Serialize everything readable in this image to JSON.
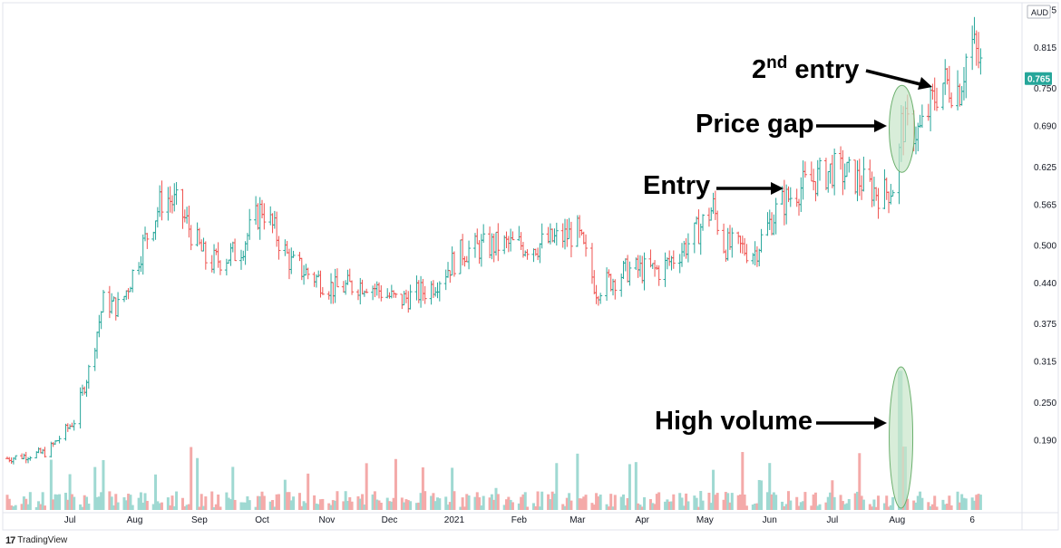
{
  "chart_data": {
    "type": "ohlc",
    "currency": "AUD",
    "last_price": "0.765",
    "y_ticks": [
      "0.875",
      "0.815",
      "0.750",
      "0.690",
      "0.625",
      "0.565",
      "0.500",
      "0.440",
      "0.375",
      "0.315",
      "0.250",
      "0.190"
    ],
    "ylim": [
      0.13,
      0.88
    ],
    "x_ticks": [
      "Jul",
      "Aug",
      "Sep",
      "Oct",
      "Nov",
      "Dec",
      "2021",
      "Feb",
      "Mar",
      "Apr",
      "May",
      "Jun",
      "Jul",
      "Aug",
      "6"
    ],
    "grid": false,
    "price_keypoints": [
      {
        "date": "2020-06-01",
        "close": 0.16
      },
      {
        "date": "2020-06-20",
        "close": 0.17
      },
      {
        "date": "2020-07-03",
        "close": 0.22
      },
      {
        "date": "2020-07-10",
        "close": 0.3
      },
      {
        "date": "2020-07-17",
        "close": 0.41
      },
      {
        "date": "2020-07-25",
        "close": 0.4
      },
      {
        "date": "2020-08-05",
        "close": 0.5
      },
      {
        "date": "2020-08-15",
        "close": 0.58
      },
      {
        "date": "2020-08-22",
        "close": 0.56
      },
      {
        "date": "2020-09-05",
        "close": 0.47
      },
      {
        "date": "2020-09-20",
        "close": 0.49
      },
      {
        "date": "2020-10-01",
        "close": 0.56
      },
      {
        "date": "2020-10-15",
        "close": 0.47
      },
      {
        "date": "2020-11-05",
        "close": 0.43
      },
      {
        "date": "2020-11-20",
        "close": 0.44
      },
      {
        "date": "2020-12-05",
        "close": 0.41
      },
      {
        "date": "2020-12-20",
        "close": 0.43
      },
      {
        "date": "2021-01-05",
        "close": 0.49
      },
      {
        "date": "2021-01-20",
        "close": 0.5
      },
      {
        "date": "2021-02-10",
        "close": 0.5
      },
      {
        "date": "2021-03-01",
        "close": 0.52
      },
      {
        "date": "2021-03-10",
        "close": 0.43
      },
      {
        "date": "2021-03-25",
        "close": 0.46
      },
      {
        "date": "2021-04-10",
        "close": 0.46
      },
      {
        "date": "2021-04-25",
        "close": 0.51
      },
      {
        "date": "2021-05-05",
        "close": 0.56
      },
      {
        "date": "2021-05-10",
        "close": 0.5
      },
      {
        "date": "2021-05-25",
        "close": 0.49
      },
      {
        "date": "2021-06-05",
        "close": 0.56
      },
      {
        "date": "2021-06-15",
        "close": 0.59
      },
      {
        "date": "2021-07-01",
        "close": 0.62
      },
      {
        "date": "2021-07-10",
        "close": 0.61
      },
      {
        "date": "2021-07-25",
        "close": 0.58
      },
      {
        "date": "2021-08-01",
        "close": 0.6
      },
      {
        "date": "2021-08-03",
        "close": 0.69
      },
      {
        "date": "2021-08-12",
        "close": 0.68
      },
      {
        "date": "2021-08-22",
        "close": 0.76
      },
      {
        "date": "2021-08-31",
        "close": 0.75
      },
      {
        "date": "2021-09-05",
        "close": 0.83
      },
      {
        "date": "2021-09-12",
        "close": 0.765
      }
    ],
    "volume_spike": {
      "date": "2021-08-02",
      "relative_height": 0.32
    },
    "annotations": [
      {
        "label": "Entry"
      },
      {
        "label": "Price gap"
      },
      {
        "label": "2nd entry",
        "base": "2",
        "superscript": "nd",
        "rest": " entry"
      },
      {
        "label": "High volume"
      }
    ]
  },
  "colors": {
    "up": "#26a69a",
    "down": "#ef5350",
    "vol_up": "#9fd9d2",
    "vol_down": "#f4aaa9",
    "highlight_fill": "#c8e6c9",
    "highlight_stroke": "#6cb06e",
    "price_badge": "#26a69a"
  },
  "branding": {
    "name": "TradingView",
    "mark": "17"
  }
}
